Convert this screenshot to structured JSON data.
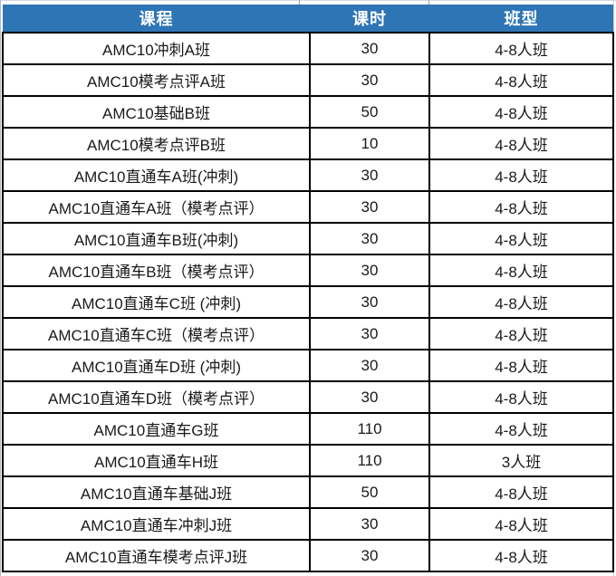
{
  "chart_data": {
    "type": "table",
    "title": "",
    "columns": [
      "课程",
      "课时",
      "班型"
    ],
    "rows": [
      [
        "AMC10冲刺A班",
        "30",
        "4-8人班"
      ],
      [
        "AMC10模考点评A班",
        "30",
        "4-8人班"
      ],
      [
        "AMC10基础B班",
        "50",
        "4-8人班"
      ],
      [
        "AMC10模考点评B班",
        "10",
        "4-8人班"
      ],
      [
        "AMC10直通车A班(冲刺)",
        "30",
        "4-8人班"
      ],
      [
        "AMC10直通车A班（模考点评）",
        "30",
        "4-8人班"
      ],
      [
        "AMC10直通车B班(冲刺)",
        "30",
        "4-8人班"
      ],
      [
        "AMC10直通车B班（模考点评）",
        "30",
        "4-8人班"
      ],
      [
        "AMC10直通车C班 (冲刺)",
        "30",
        "4-8人班"
      ],
      [
        "AMC10直通车C班（模考点评）",
        "30",
        "4-8人班"
      ],
      [
        "AMC10直通车D班 (冲刺)",
        "30",
        "4-8人班"
      ],
      [
        "AMC10直通车D班（模考点评）",
        "30",
        "4-8人班"
      ],
      [
        "AMC10直通车G班",
        "110",
        "4-8人班"
      ],
      [
        "AMC10直通车H班",
        "110",
        "3人班"
      ],
      [
        "AMC10直通车基础J班",
        "50",
        "4-8人班"
      ],
      [
        "AMC10直通车冲刺J班",
        "30",
        "4-8人班"
      ],
      [
        "AMC10直通车模考点评J班",
        "30",
        "4-8人班"
      ]
    ],
    "layout": {
      "grid": "on",
      "header_position": "top"
    }
  },
  "colors": {
    "header_bg": "#2E75B6",
    "header_text": "#FFFFFF",
    "grid_border": "#000000",
    "cell_text": "#1A1A1A",
    "sheet_gridline": "#ADB9CA"
  }
}
